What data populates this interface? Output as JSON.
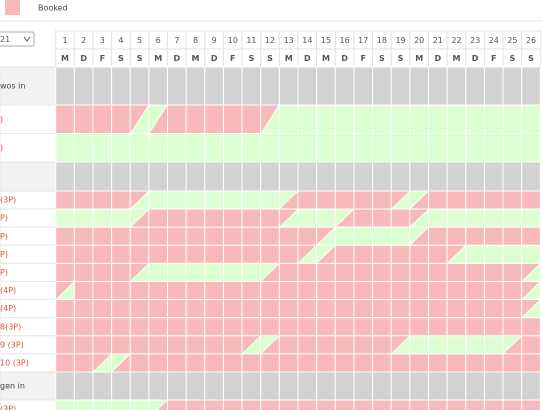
{
  "legend": {
    "label": "Booked"
  },
  "month_select": {
    "value": "21"
  },
  "days": [
    "1",
    "2",
    "3",
    "4",
    "5",
    "6",
    "7",
    "8",
    "9",
    "10",
    "11",
    "12",
    "13",
    "14",
    "15",
    "16",
    "17",
    "18",
    "19",
    "20",
    "21",
    "22",
    "23",
    "24",
    "25",
    "26"
  ],
  "weekdays": [
    "M",
    "D",
    "F",
    "S",
    "S",
    "M",
    "D",
    "M",
    "D",
    "F",
    "S",
    "S",
    "M",
    "D",
    "M",
    "D",
    "F",
    "S",
    "S",
    "M",
    "D",
    "M",
    "D",
    "F",
    "S",
    "S"
  ],
  "rows": [
    {
      "label": "wos in",
      "kind": "group",
      "cells": [
        "G",
        "G",
        "G",
        "G",
        "G",
        "G",
        "G",
        "G",
        "G",
        "G",
        "G",
        "G",
        "G",
        "G",
        "G",
        "G",
        "G",
        "G",
        "G",
        "G",
        "G",
        "G",
        "G",
        "G",
        "G",
        "G"
      ]
    },
    {
      "label": ")",
      "kind": "tall",
      "cells": [
        "B",
        "B",
        "B",
        "B",
        "E",
        "S",
        "B",
        "B",
        "B",
        "B",
        "B",
        "E",
        "F",
        "F",
        "F",
        "F",
        "F",
        "F",
        "F",
        "F",
        "F",
        "F",
        "F",
        "F",
        "F",
        "F"
      ]
    },
    {
      "label": ")",
      "kind": "tall",
      "cells": [
        "F",
        "F",
        "F",
        "F",
        "F",
        "F",
        "F",
        "F",
        "F",
        "F",
        "F",
        "F",
        "F",
        "F",
        "F",
        "F",
        "F",
        "F",
        "F",
        "F",
        "F",
        "F",
        "F",
        "F",
        "F",
        "F"
      ]
    },
    {
      "label": "",
      "kind": "group",
      "cells": [
        "G",
        "G",
        "G",
        "G",
        "G",
        "G",
        "G",
        "G",
        "G",
        "G",
        "G",
        "G",
        "G",
        "G",
        "G",
        "G",
        "G",
        "G",
        "G",
        "G",
        "G",
        "G",
        "G",
        "G",
        "G",
        "G"
      ]
    },
    {
      "label": "(3P)",
      "kind": "unit",
      "cells": [
        "B",
        "B",
        "B",
        "B",
        "E",
        "F",
        "F",
        "F",
        "F",
        "F",
        "F",
        "F",
        "S",
        "B",
        "B",
        "B",
        "B",
        "B",
        "E",
        "S",
        "B",
        "B",
        "B",
        "B",
        "B",
        "B"
      ]
    },
    {
      "label": "P)",
      "kind": "unit",
      "cells": [
        "F",
        "F",
        "F",
        "F",
        "S",
        "B",
        "B",
        "B",
        "B",
        "B",
        "B",
        "B",
        "E",
        "F",
        "F",
        "S",
        "B",
        "B",
        "B",
        "E",
        "F",
        "F",
        "F",
        "F",
        "F",
        "F"
      ]
    },
    {
      "label": "P)",
      "kind": "unit",
      "cells": [
        "B",
        "B",
        "B",
        "B",
        "B",
        "B",
        "B",
        "B",
        "B",
        "B",
        "B",
        "B",
        "B",
        "B",
        "E",
        "F",
        "F",
        "F",
        "F",
        "S",
        "B",
        "B",
        "B",
        "B",
        "B",
        "B"
      ]
    },
    {
      "label": "P)",
      "kind": "unit",
      "cells": [
        "B",
        "B",
        "B",
        "B",
        "B",
        "B",
        "B",
        "B",
        "B",
        "B",
        "B",
        "B",
        "B",
        "E",
        "S",
        "B",
        "B",
        "B",
        "B",
        "B",
        "B",
        "E",
        "F",
        "F",
        "F",
        "F"
      ]
    },
    {
      "label": "P)",
      "kind": "unit",
      "cells": [
        "B",
        "B",
        "B",
        "B",
        "E",
        "F",
        "F",
        "F",
        "F",
        "F",
        "F",
        "S",
        "B",
        "B",
        "B",
        "B",
        "B",
        "B",
        "B",
        "B",
        "B",
        "B",
        "B",
        "B",
        "B",
        "E"
      ]
    },
    {
      "label": "(4P)",
      "kind": "unit",
      "cells": [
        "E",
        "B",
        "B",
        "B",
        "B",
        "B",
        "B",
        "B",
        "B",
        "B",
        "B",
        "B",
        "B",
        "B",
        "B",
        "B",
        "B",
        "B",
        "B",
        "B",
        "B",
        "B",
        "B",
        "B",
        "B",
        "E"
      ]
    },
    {
      "label": "(4P)",
      "kind": "unit",
      "cells": [
        "B",
        "B",
        "B",
        "B",
        "B",
        "B",
        "B",
        "B",
        "B",
        "B",
        "B",
        "B",
        "B",
        "B",
        "B",
        "B",
        "B",
        "B",
        "B",
        "B",
        "B",
        "B",
        "B",
        "B",
        "B",
        "E"
      ]
    },
    {
      "label": "8(3P)",
      "kind": "unit",
      "cells": [
        "B",
        "B",
        "B",
        "B",
        "B",
        "B",
        "B",
        "B",
        "B",
        "B",
        "B",
        "B",
        "B",
        "B",
        "B",
        "B",
        "B",
        "B",
        "B",
        "B",
        "B",
        "B",
        "B",
        "B",
        "B",
        "B"
      ]
    },
    {
      "label": "9 (3P)",
      "kind": "unit",
      "cells": [
        "B",
        "B",
        "B",
        "B",
        "B",
        "B",
        "B",
        "B",
        "B",
        "B",
        "E",
        "S",
        "B",
        "B",
        "B",
        "B",
        "B",
        "B",
        "E",
        "F",
        "F",
        "F",
        "F",
        "F",
        "S",
        "B"
      ]
    },
    {
      "label": "10 (3P)",
      "kind": "unit",
      "cells": [
        "B",
        "B",
        "E",
        "S",
        "B",
        "B",
        "B",
        "B",
        "B",
        "B",
        "B",
        "B",
        "B",
        "B",
        "B",
        "B",
        "B",
        "B",
        "B",
        "B",
        "B",
        "B",
        "B",
        "B",
        "B",
        "B"
      ]
    },
    {
      "label": "gen in",
      "kind": "group",
      "cells": [
        "G",
        "G",
        "G",
        "G",
        "G",
        "G",
        "G",
        "G",
        "G",
        "G",
        "G",
        "G",
        "G",
        "G",
        "G",
        "G",
        "G",
        "G",
        "G",
        "G",
        "G",
        "G",
        "G",
        "G",
        "G",
        "G"
      ]
    },
    {
      "label": "(3P)",
      "kind": "unit",
      "cells": [
        "F",
        "F",
        "F",
        "F",
        "F",
        "S",
        "B",
        "B",
        "B",
        "B",
        "B",
        "B",
        "B",
        "B",
        "B",
        "B",
        "B",
        "B",
        "B",
        "B",
        "B",
        "B",
        "B",
        "B",
        "B",
        "B"
      ]
    }
  ]
}
